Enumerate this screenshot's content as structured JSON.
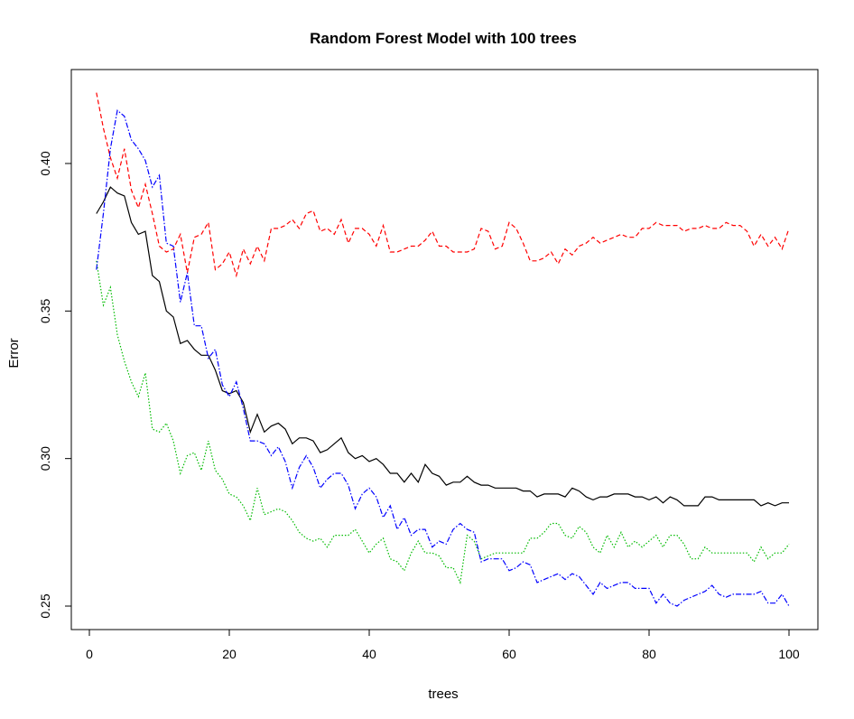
{
  "chart_data": {
    "type": "line",
    "title": "Random Forest Model with 100 trees",
    "xlabel": "trees",
    "ylabel": "Error",
    "xlim": [
      1,
      100
    ],
    "ylim": [
      0.24,
      0.43
    ],
    "x_ticks": [
      0,
      20,
      40,
      60,
      80,
      100
    ],
    "y_ticks": [
      0.25,
      0.3,
      0.35,
      0.4
    ],
    "grid": false,
    "legend": "none",
    "x": [
      1,
      2,
      3,
      4,
      5,
      6,
      7,
      8,
      9,
      10,
      11,
      12,
      13,
      14,
      15,
      16,
      17,
      18,
      19,
      20,
      21,
      22,
      23,
      24,
      25,
      26,
      27,
      28,
      29,
      30,
      31,
      32,
      33,
      34,
      35,
      36,
      37,
      38,
      39,
      40,
      41,
      42,
      43,
      44,
      45,
      46,
      47,
      48,
      49,
      50,
      51,
      52,
      53,
      54,
      55,
      56,
      57,
      58,
      59,
      60,
      61,
      62,
      63,
      64,
      65,
      66,
      67,
      68,
      69,
      70,
      71,
      72,
      73,
      74,
      75,
      76,
      77,
      78,
      79,
      80,
      81,
      82,
      83,
      84,
      85,
      86,
      87,
      88,
      89,
      90,
      91,
      92,
      93,
      94,
      95,
      96,
      97,
      98,
      99,
      100
    ],
    "series": [
      {
        "color": "#000000",
        "dash": "solid",
        "values": [
          0.383,
          0.387,
          0.392,
          0.39,
          0.389,
          0.38,
          0.376,
          0.377,
          0.362,
          0.36,
          0.35,
          0.348,
          0.339,
          0.34,
          0.337,
          0.335,
          0.335,
          0.33,
          0.323,
          0.322,
          0.323,
          0.319,
          0.309,
          0.315,
          0.309,
          0.311,
          0.312,
          0.31,
          0.305,
          0.307,
          0.307,
          0.306,
          0.302,
          0.303,
          0.305,
          0.307,
          0.302,
          0.3,
          0.301,
          0.299,
          0.3,
          0.298,
          0.295,
          0.295,
          0.292,
          0.295,
          0.292,
          0.298,
          0.295,
          0.294,
          0.291,
          0.292,
          0.292,
          0.294,
          0.292,
          0.291,
          0.291,
          0.29,
          0.29,
          0.29,
          0.29,
          0.289,
          0.289,
          0.287,
          0.288,
          0.288,
          0.288,
          0.287,
          0.29,
          0.289,
          0.287,
          0.286,
          0.287,
          0.287,
          0.288,
          0.288,
          0.288,
          0.287,
          0.287,
          0.286,
          0.287,
          0.285,
          0.287,
          0.286,
          0.284,
          0.284,
          0.284,
          0.287,
          0.287,
          0.286,
          0.286,
          0.286,
          0.286,
          0.286,
          0.286,
          0.284,
          0.285,
          0.284,
          0.285,
          0.285
        ]
      },
      {
        "color": "#ff0000",
        "dash": "dashed",
        "values": [
          0.424,
          0.412,
          0.402,
          0.395,
          0.405,
          0.391,
          0.385,
          0.393,
          0.383,
          0.372,
          0.37,
          0.371,
          0.376,
          0.363,
          0.375,
          0.376,
          0.38,
          0.364,
          0.366,
          0.37,
          0.362,
          0.371,
          0.366,
          0.372,
          0.367,
          0.378,
          0.378,
          0.379,
          0.381,
          0.378,
          0.383,
          0.384,
          0.377,
          0.378,
          0.376,
          0.381,
          0.373,
          0.378,
          0.378,
          0.376,
          0.372,
          0.379,
          0.37,
          0.37,
          0.371,
          0.372,
          0.372,
          0.374,
          0.377,
          0.372,
          0.372,
          0.37,
          0.37,
          0.37,
          0.371,
          0.378,
          0.377,
          0.371,
          0.372,
          0.38,
          0.378,
          0.373,
          0.367,
          0.367,
          0.368,
          0.37,
          0.366,
          0.371,
          0.369,
          0.372,
          0.373,
          0.375,
          0.373,
          0.374,
          0.375,
          0.376,
          0.375,
          0.375,
          0.378,
          0.378,
          0.38,
          0.379,
          0.379,
          0.379,
          0.377,
          0.378,
          0.378,
          0.379,
          0.378,
          0.378,
          0.38,
          0.379,
          0.379,
          0.377,
          0.372,
          0.376,
          0.372,
          0.375,
          0.371,
          0.378
        ]
      },
      {
        "color": "#00bb00",
        "dash": "dotted",
        "values": [
          0.367,
          0.352,
          0.358,
          0.342,
          0.333,
          0.326,
          0.321,
          0.329,
          0.31,
          0.309,
          0.312,
          0.306,
          0.295,
          0.301,
          0.302,
          0.296,
          0.306,
          0.296,
          0.293,
          0.288,
          0.287,
          0.284,
          0.279,
          0.29,
          0.281,
          0.282,
          0.283,
          0.282,
          0.279,
          0.275,
          0.273,
          0.272,
          0.273,
          0.27,
          0.274,
          0.274,
          0.274,
          0.276,
          0.272,
          0.268,
          0.271,
          0.273,
          0.266,
          0.265,
          0.262,
          0.268,
          0.272,
          0.268,
          0.268,
          0.267,
          0.263,
          0.263,
          0.258,
          0.274,
          0.272,
          0.266,
          0.267,
          0.268,
          0.268,
          0.268,
          0.268,
          0.268,
          0.273,
          0.273,
          0.275,
          0.278,
          0.278,
          0.274,
          0.273,
          0.277,
          0.275,
          0.27,
          0.268,
          0.274,
          0.27,
          0.275,
          0.27,
          0.272,
          0.27,
          0.272,
          0.274,
          0.27,
          0.274,
          0.274,
          0.271,
          0.266,
          0.266,
          0.27,
          0.268,
          0.268,
          0.268,
          0.268,
          0.268,
          0.268,
          0.265,
          0.27,
          0.266,
          0.268,
          0.268,
          0.271
        ]
      },
      {
        "color": "#0000ff",
        "dash": "dashdot",
        "values": [
          0.364,
          0.383,
          0.405,
          0.418,
          0.416,
          0.408,
          0.405,
          0.401,
          0.392,
          0.396,
          0.373,
          0.372,
          0.353,
          0.363,
          0.345,
          0.345,
          0.334,
          0.337,
          0.325,
          0.321,
          0.326,
          0.317,
          0.306,
          0.306,
          0.305,
          0.301,
          0.304,
          0.299,
          0.29,
          0.297,
          0.301,
          0.297,
          0.29,
          0.293,
          0.295,
          0.295,
          0.291,
          0.283,
          0.288,
          0.29,
          0.287,
          0.28,
          0.284,
          0.276,
          0.28,
          0.274,
          0.276,
          0.276,
          0.27,
          0.272,
          0.271,
          0.276,
          0.278,
          0.276,
          0.275,
          0.265,
          0.266,
          0.266,
          0.266,
          0.262,
          0.263,
          0.265,
          0.264,
          0.258,
          0.259,
          0.26,
          0.261,
          0.259,
          0.261,
          0.26,
          0.257,
          0.254,
          0.258,
          0.256,
          0.257,
          0.258,
          0.258,
          0.256,
          0.256,
          0.256,
          0.251,
          0.254,
          0.251,
          0.25,
          0.252,
          0.253,
          0.254,
          0.255,
          0.257,
          0.254,
          0.253,
          0.254,
          0.254,
          0.254,
          0.254,
          0.255,
          0.251,
          0.251,
          0.254,
          0.25
        ]
      }
    ]
  }
}
